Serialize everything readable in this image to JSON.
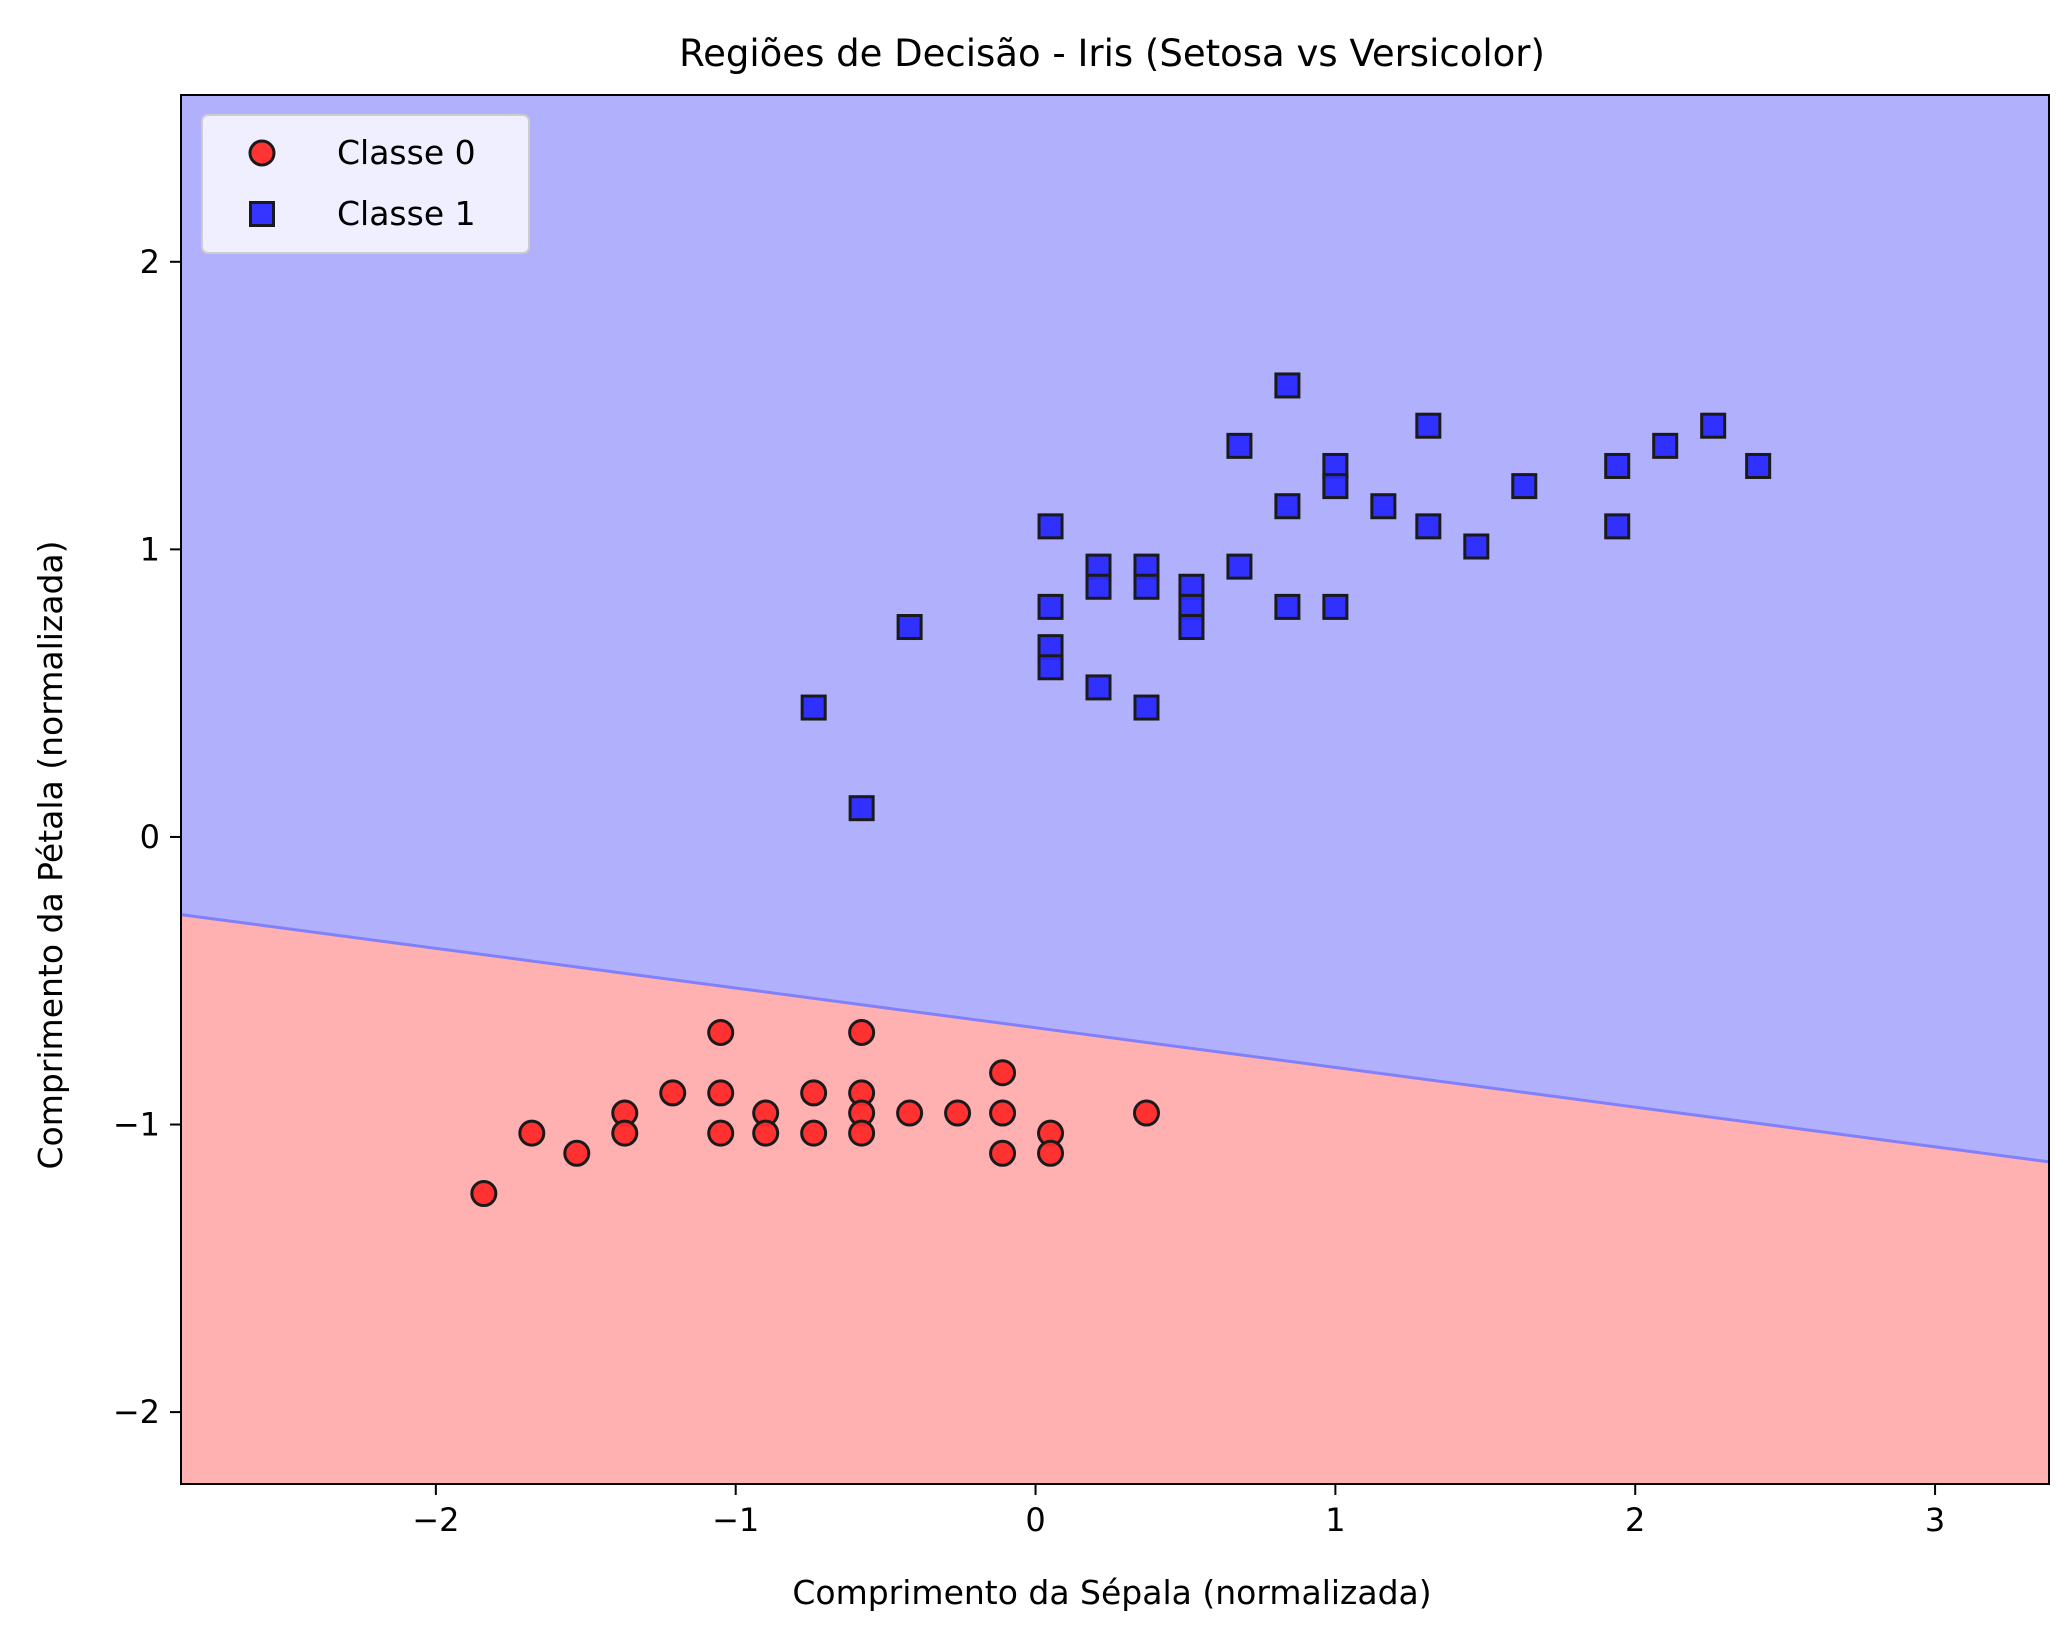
{
  "chart_data": {
    "type": "scatter",
    "title": "Regiões de Decisão - Iris (Setosa vs Versicolor)",
    "xlabel": "Comprimento da Sépala (normalizada)",
    "ylabel": "Comprimento da Pétala (normalizada)",
    "xlim": [
      -2.85,
      3.38
    ],
    "ylim": [
      -2.25,
      2.58
    ],
    "xticks": [
      -2,
      -1,
      0,
      1,
      2,
      3
    ],
    "yticks": [
      -2,
      -1,
      0,
      1,
      2
    ],
    "grid": false,
    "legend_position": "top-left",
    "decision_boundary": {
      "x": [
        -2.85,
        3.38
      ],
      "y": [
        -0.27,
        -1.13
      ],
      "region_below_class": "Classe 0",
      "region_above_class": "Classe 1",
      "region_below_color": "#ffb0b0",
      "region_above_color": "#b0b0fc",
      "boundary_color": "#8080fa"
    },
    "series": [
      {
        "name": "Classe 0",
        "marker": "circle",
        "color": "#ff2a2a",
        "points": [
          [
            -1.84,
            -1.24
          ],
          [
            -1.68,
            -1.03
          ],
          [
            -1.53,
            -1.1
          ],
          [
            -1.37,
            -0.96
          ],
          [
            -1.37,
            -1.03
          ],
          [
            -1.21,
            -0.89
          ],
          [
            -1.05,
            -0.68
          ],
          [
            -1.05,
            -0.89
          ],
          [
            -1.05,
            -1.03
          ],
          [
            -0.9,
            -0.96
          ],
          [
            -0.9,
            -1.03
          ],
          [
            -0.74,
            -0.89
          ],
          [
            -0.74,
            -1.03
          ],
          [
            -0.58,
            -0.68
          ],
          [
            -0.58,
            -0.89
          ],
          [
            -0.58,
            -0.96
          ],
          [
            -0.58,
            -1.03
          ],
          [
            -0.42,
            -0.96
          ],
          [
            -0.26,
            -0.96
          ],
          [
            -0.11,
            -0.82
          ],
          [
            -0.11,
            -0.96
          ],
          [
            -0.11,
            -1.1
          ],
          [
            0.05,
            -1.03
          ],
          [
            0.05,
            -1.1
          ],
          [
            0.37,
            -0.96
          ]
        ]
      },
      {
        "name": "Classe 1",
        "marker": "square",
        "color": "#2a2aff",
        "points": [
          [
            -0.74,
            0.45
          ],
          [
            -0.58,
            0.1
          ],
          [
            -0.42,
            0.73
          ],
          [
            0.05,
            1.08
          ],
          [
            0.05,
            0.8
          ],
          [
            0.05,
            0.66
          ],
          [
            0.05,
            0.59
          ],
          [
            0.21,
            0.94
          ],
          [
            0.21,
            0.87
          ],
          [
            0.21,
            0.52
          ],
          [
            0.37,
            0.94
          ],
          [
            0.37,
            0.87
          ],
          [
            0.37,
            0.45
          ],
          [
            0.52,
            0.87
          ],
          [
            0.52,
            0.8
          ],
          [
            0.52,
            0.73
          ],
          [
            0.68,
            1.36
          ],
          [
            0.68,
            0.94
          ],
          [
            0.84,
            1.57
          ],
          [
            0.84,
            1.15
          ],
          [
            0.84,
            0.8
          ],
          [
            1.0,
            1.29
          ],
          [
            1.0,
            1.22
          ],
          [
            1.0,
            0.8
          ],
          [
            1.16,
            1.15
          ],
          [
            1.31,
            1.43
          ],
          [
            1.31,
            1.08
          ],
          [
            1.47,
            1.01
          ],
          [
            1.63,
            1.22
          ],
          [
            1.94,
            1.29
          ],
          [
            1.94,
            1.08
          ],
          [
            2.1,
            1.36
          ],
          [
            2.26,
            1.43
          ],
          [
            2.41,
            1.29
          ]
        ]
      }
    ]
  }
}
